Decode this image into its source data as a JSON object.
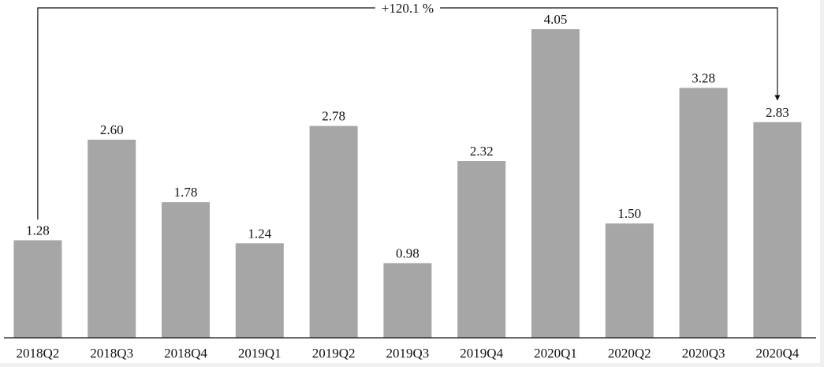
{
  "chart_data": {
    "type": "bar",
    "annotation": "+120.1 %",
    "categories": [
      "2018Q2",
      "2018Q3",
      "2018Q4",
      "2019Q1",
      "2019Q2",
      "2019Q3",
      "2019Q4",
      "2020Q1",
      "2020Q2",
      "2020Q3",
      "2020Q4"
    ],
    "values": [
      1.28,
      2.6,
      1.78,
      1.24,
      2.78,
      0.98,
      2.32,
      4.05,
      1.5,
      3.28,
      2.83
    ],
    "value_labels": [
      "1.28",
      "2.60",
      "1.78",
      "1.24",
      "2.78",
      "0.98",
      "2.32",
      "4.05",
      "1.50",
      "3.28",
      "2.83"
    ],
    "color": "#a6a6a6"
  }
}
